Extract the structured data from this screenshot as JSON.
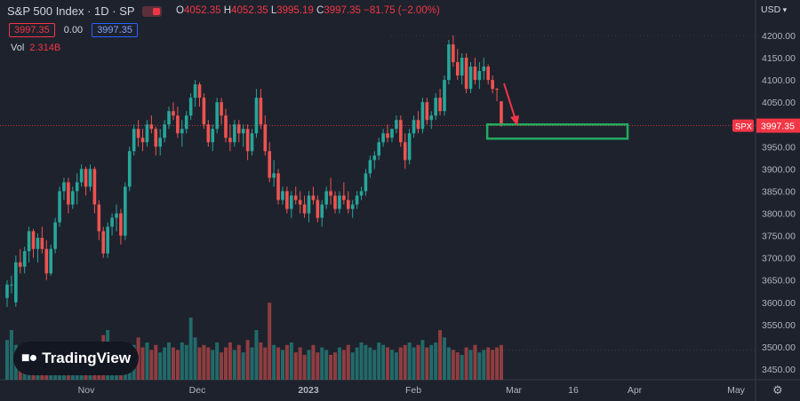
{
  "header": {
    "symbol": "S&P 500 Index · 1D · SP",
    "ohlc": {
      "o_label": "O",
      "o": "4052.35",
      "h_label": "H",
      "h": "4052.35",
      "l_label": "L",
      "l": "3995.19",
      "c_label": "C",
      "c": "3997.35",
      "change": "−81.75 (−2.00%)"
    },
    "bid": "3997.35",
    "spread": "0.00",
    "ask": "3997.35",
    "volume_label": "Vol",
    "volume": "2.314B"
  },
  "currency": "USD",
  "logo_text": "TradingView",
  "icons": {
    "settings": "gear-icon",
    "logo": "tradingview-logo-icon",
    "toggle": "visibility-toggle-icon"
  },
  "colors": {
    "bg": "#1e222d",
    "up": "#26a69a",
    "down": "#ef5350",
    "grid": "#2a2e39",
    "highlight_box": "#22ab5f",
    "arrow": "#f23645",
    "price_tag": "#f23645"
  },
  "chart_data": {
    "type": "candlestick",
    "symbol": "SPX",
    "current_price": 3997.35,
    "price_tag_label": "SPX",
    "price_tag_value": "3997.35",
    "y_ticks": [
      4200,
      4150,
      4100,
      4050,
      4000,
      3950,
      3900,
      3850,
      3800,
      3750,
      3700,
      3650,
      3600,
      3550,
      3500,
      3450
    ],
    "y_tick_labels": [
      "4200.00",
      "4150.00",
      "4100.00",
      "4050.00",
      "4000.00",
      "3950.00",
      "3900.00",
      "3850.00",
      "3800.00",
      "3750.00",
      "3700.00",
      "3650.00",
      "3600.00",
      "3550.00",
      "3500.00",
      "3450.00"
    ],
    "ylim": [
      3420,
      4240
    ],
    "x_labels": [
      "Nov",
      "Dec",
      "2023",
      "Feb",
      "Mar",
      "16",
      "Apr",
      "May"
    ],
    "annotation_box": {
      "price_low": 3968,
      "price_high": 4000,
      "bar_start": 111,
      "bar_end": 172
    },
    "candles": [
      [
        3610,
        3650,
        3590,
        3640
      ],
      [
        3640,
        3660,
        3620,
        3640
      ],
      [
        3600,
        3705,
        3590,
        3690
      ],
      [
        3690,
        3720,
        3665,
        3680
      ],
      [
        3680,
        3725,
        3665,
        3715
      ],
      [
        3715,
        3770,
        3690,
        3760
      ],
      [
        3760,
        3765,
        3700,
        3720
      ],
      [
        3720,
        3755,
        3690,
        3745
      ],
      [
        3745,
        3770,
        3710,
        3720
      ],
      [
        3720,
        3740,
        3650,
        3665
      ],
      [
        3665,
        3730,
        3660,
        3720
      ],
      [
        3720,
        3790,
        3710,
        3780
      ],
      [
        3780,
        3860,
        3770,
        3850
      ],
      [
        3850,
        3880,
        3830,
        3870
      ],
      [
        3870,
        3880,
        3800,
        3820
      ],
      [
        3820,
        3860,
        3810,
        3850
      ],
      [
        3850,
        3890,
        3820,
        3870
      ],
      [
        3870,
        3910,
        3860,
        3900
      ],
      [
        3900,
        3905,
        3840,
        3860
      ],
      [
        3860,
        3910,
        3850,
        3900
      ],
      [
        3900,
        3905,
        3800,
        3820
      ],
      [
        3820,
        3830,
        3740,
        3760
      ],
      [
        3760,
        3770,
        3700,
        3710
      ],
      [
        3710,
        3780,
        3700,
        3770
      ],
      [
        3770,
        3800,
        3750,
        3790
      ],
      [
        3790,
        3820,
        3760,
        3800
      ],
      [
        3800,
        3810,
        3730,
        3750
      ],
      [
        3750,
        3870,
        3740,
        3860
      ],
      [
        3860,
        3950,
        3850,
        3940
      ],
      [
        3940,
        4000,
        3930,
        3990
      ],
      [
        3990,
        4010,
        3950,
        3970
      ],
      [
        3970,
        3990,
        3940,
        3960
      ],
      [
        3960,
        4010,
        3950,
        4000
      ],
      [
        4000,
        4020,
        3980,
        3990
      ],
      [
        3990,
        3995,
        3930,
        3950
      ],
      [
        3950,
        3990,
        3930,
        3970
      ],
      [
        3970,
        4010,
        3960,
        4000
      ],
      [
        4000,
        4040,
        3990,
        4030
      ],
      [
        4030,
        4050,
        4010,
        4020
      ],
      [
        4020,
        4040,
        3970,
        3980
      ],
      [
        3980,
        4010,
        3950,
        3990
      ],
      [
        3990,
        4030,
        3980,
        4020
      ],
      [
        4020,
        4070,
        4010,
        4060
      ],
      [
        4060,
        4100,
        4040,
        4090
      ],
      [
        4090,
        4095,
        4040,
        4060
      ],
      [
        4060,
        4070,
        3990,
        4000
      ],
      [
        4000,
        4010,
        3950,
        3960
      ],
      [
        3960,
        4000,
        3940,
        3990
      ],
      [
        3990,
        4060,
        3980,
        4050
      ],
      [
        4050,
        4060,
        4000,
        4020
      ],
      [
        4020,
        4035,
        3960,
        3970
      ],
      [
        3970,
        4000,
        3940,
        3960
      ],
      [
        3960,
        4010,
        3950,
        4000
      ],
      [
        4000,
        4010,
        3960,
        3980
      ],
      [
        3980,
        4000,
        3950,
        3990
      ],
      [
        3990,
        4000,
        3920,
        3940
      ],
      [
        3940,
        3990,
        3930,
        3980
      ],
      [
        3980,
        4080,
        3970,
        4060
      ],
      [
        4060,
        4080,
        3990,
        4000
      ],
      [
        4000,
        4020,
        3930,
        3940
      ],
      [
        3940,
        3960,
        3870,
        3880
      ],
      [
        3880,
        3920,
        3860,
        3890
      ],
      [
        3890,
        3900,
        3820,
        3830
      ],
      [
        3830,
        3860,
        3820,
        3850
      ],
      [
        3850,
        3860,
        3800,
        3810
      ],
      [
        3810,
        3850,
        3790,
        3840
      ],
      [
        3840,
        3860,
        3820,
        3830
      ],
      [
        3830,
        3850,
        3800,
        3820
      ],
      [
        3820,
        3840,
        3790,
        3800
      ],
      [
        3800,
        3850,
        3780,
        3840
      ],
      [
        3840,
        3860,
        3820,
        3830
      ],
      [
        3830,
        3840,
        3780,
        3790
      ],
      [
        3790,
        3830,
        3770,
        3820
      ],
      [
        3820,
        3860,
        3810,
        3850
      ],
      [
        3850,
        3880,
        3820,
        3840
      ],
      [
        3840,
        3850,
        3800,
        3810
      ],
      [
        3810,
        3850,
        3800,
        3840
      ],
      [
        3840,
        3870,
        3820,
        3830
      ],
      [
        3830,
        3850,
        3800,
        3810
      ],
      [
        3810,
        3830,
        3790,
        3820
      ],
      [
        3820,
        3850,
        3810,
        3840
      ],
      [
        3840,
        3860,
        3830,
        3850
      ],
      [
        3850,
        3900,
        3840,
        3890
      ],
      [
        3890,
        3930,
        3880,
        3920
      ],
      [
        3920,
        3940,
        3900,
        3930
      ],
      [
        3930,
        3970,
        3920,
        3960
      ],
      [
        3960,
        3990,
        3950,
        3980
      ],
      [
        3980,
        4000,
        3960,
        3970
      ],
      [
        3970,
        3990,
        3960,
        3990
      ],
      [
        3990,
        4020,
        3980,
        4010
      ],
      [
        4010,
        4020,
        3950,
        3960
      ],
      [
        3960,
        3980,
        3900,
        3920
      ],
      [
        3920,
        3990,
        3910,
        3980
      ],
      [
        3980,
        4020,
        3970,
        4010
      ],
      [
        4010,
        4030,
        3980,
        3990
      ],
      [
        3990,
        4060,
        3980,
        4050
      ],
      [
        4050,
        4060,
        4000,
        4010
      ],
      [
        4010,
        4030,
        3990,
        4020
      ],
      [
        4020,
        4070,
        4010,
        4060
      ],
      [
        4060,
        4080,
        4020,
        4030
      ],
      [
        4030,
        4110,
        4020,
        4100
      ],
      [
        4100,
        4190,
        4090,
        4180
      ],
      [
        4180,
        4200,
        4130,
        4140
      ],
      [
        4140,
        4170,
        4100,
        4110
      ],
      [
        4110,
        4160,
        4090,
        4150
      ],
      [
        4150,
        4160,
        4070,
        4080
      ],
      [
        4080,
        4140,
        4070,
        4130
      ],
      [
        4130,
        4150,
        4090,
        4100
      ],
      [
        4100,
        4140,
        4080,
        4120
      ],
      [
        4120,
        4150,
        4100,
        4130
      ],
      [
        4130,
        4135,
        4090,
        4100
      ],
      [
        4100,
        4110,
        4070,
        4080
      ],
      [
        4080,
        4082,
        4052,
        4079
      ],
      [
        4052,
        4052,
        3995,
        3997
      ]
    ],
    "volumes": [
      32,
      40,
      28,
      18,
      24,
      26,
      22,
      20,
      25,
      28,
      30,
      22,
      24,
      20,
      18,
      22,
      26,
      28,
      30,
      22,
      26,
      24,
      36,
      40,
      30,
      28,
      22,
      24,
      26,
      28,
      34,
      26,
      30,
      24,
      28,
      22,
      26,
      30,
      26,
      24,
      30,
      28,
      50,
      34,
      26,
      28,
      26,
      24,
      30,
      22,
      26,
      30,
      24,
      28,
      22,
      32,
      26,
      40,
      30,
      26,
      62,
      28,
      26,
      24,
      28,
      30,
      22,
      26,
      20,
      24,
      28,
      22,
      26,
      24,
      20,
      22,
      26,
      24,
      28,
      22,
      26,
      30,
      28,
      26,
      24,
      30,
      28,
      26,
      24,
      22,
      26,
      28,
      30,
      26,
      28,
      32,
      26,
      28,
      30,
      40,
      34,
      26,
      24,
      22,
      20,
      26,
      24,
      28,
      22,
      24,
      26,
      24,
      26,
      28
    ]
  }
}
